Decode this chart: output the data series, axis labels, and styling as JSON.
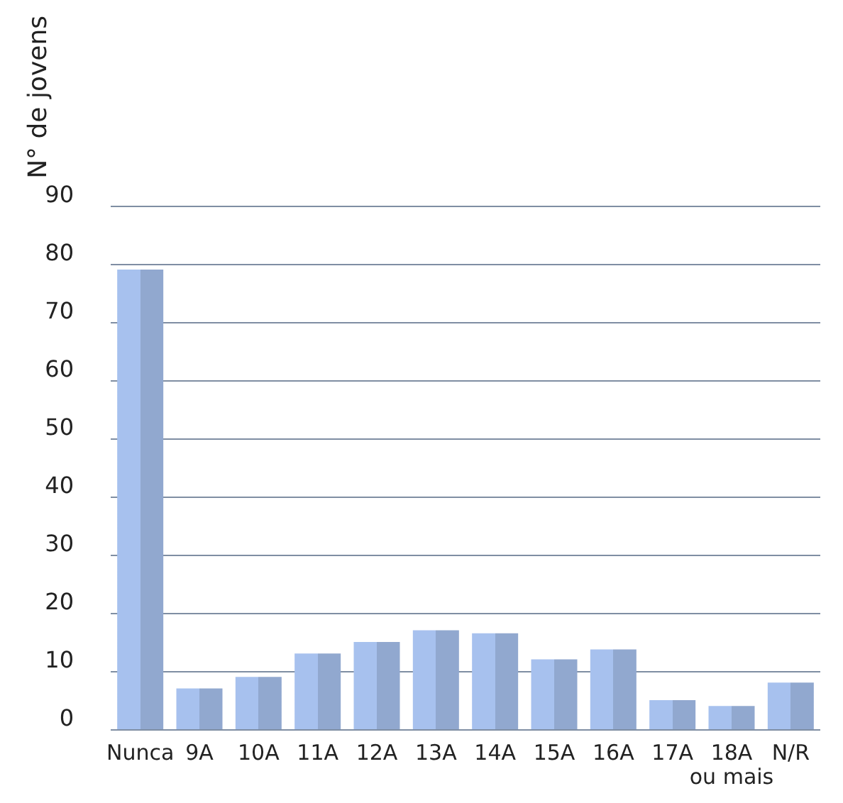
{
  "chart_data": {
    "type": "bar",
    "ylabel": "N° de jovens",
    "categories": [
      "Nunca",
      "9A",
      "10A",
      "11A",
      "12A",
      "13A",
      "14A",
      "15A",
      "16A",
      "17A",
      "18A\nou mais",
      "N/R"
    ],
    "values": [
      79,
      7,
      9,
      13,
      15,
      17,
      16.5,
      12,
      13.7,
      5,
      4,
      8
    ],
    "color": "#a7c1ee",
    "ylim": [
      0,
      90
    ],
    "yticks": [
      0,
      10,
      20,
      30,
      40,
      50,
      60,
      70,
      80,
      90
    ],
    "grid": "y"
  }
}
